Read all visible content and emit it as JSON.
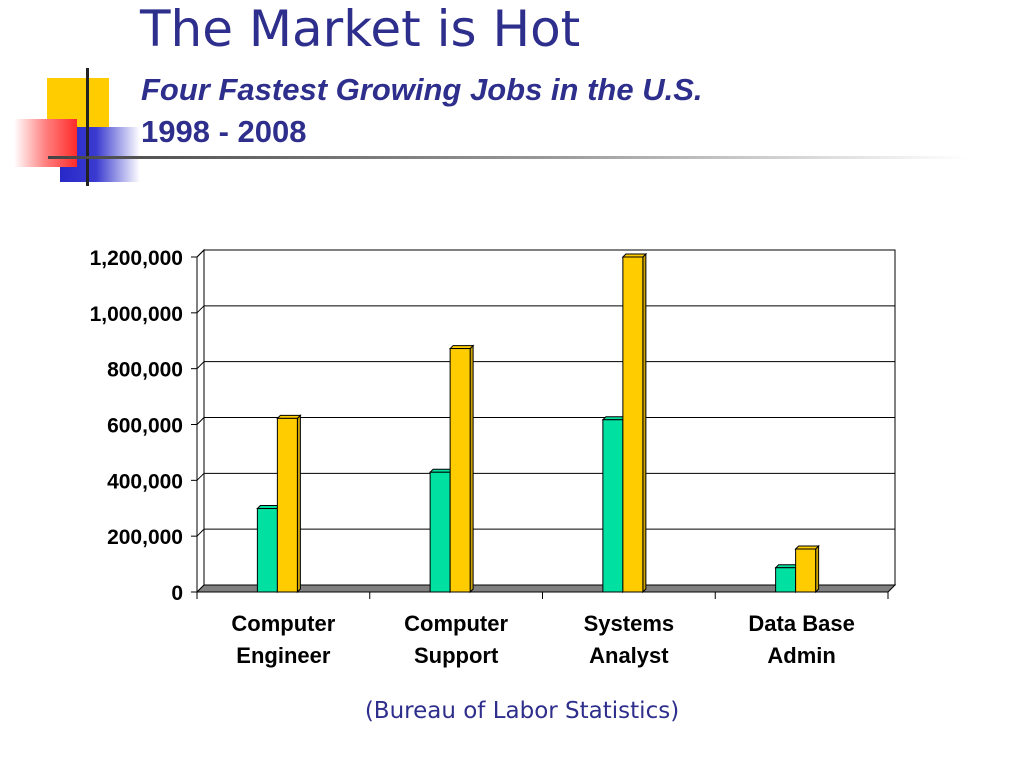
{
  "slide": {
    "title": "The Market is Hot",
    "subtitle": "Four Fastest Growing Jobs in the U.S.",
    "subtitle_years": "1998 - 2008",
    "source": "(Bureau of Labor Statistics)"
  },
  "colors": {
    "title": "#2e2e8c",
    "series_1998": "#00e0a0",
    "series_2008": "#ffcc00",
    "floor": "#808080",
    "deco_yellow": "#ffcc00",
    "deco_blue": "#3333cc",
    "deco_red": "#ff3333"
  },
  "chart_data": {
    "type": "bar",
    "title": "",
    "xlabel": "",
    "ylabel": "",
    "categories": [
      [
        "Computer",
        "Engineer"
      ],
      [
        "Computer",
        "Support"
      ],
      [
        "Systems",
        "Analyst"
      ],
      [
        "Data Base",
        "Admin"
      ]
    ],
    "series": [
      {
        "values": [
          299000,
          429000,
          617000,
          87000
        ]
      },
      {
        "values": [
          622000,
          872000,
          1200000,
          154000
        ]
      }
    ],
    "ylim": [
      0,
      1200000
    ],
    "yticks": [
      {
        "value": 0,
        "label": "0"
      },
      {
        "value": 200000,
        "label": "200,000"
      },
      {
        "value": 400000,
        "label": "400,000"
      },
      {
        "value": 600000,
        "label": "600,000"
      },
      {
        "value": 800000,
        "label": "800,000"
      },
      {
        "value": 1000000,
        "label": "1,000,000"
      },
      {
        "value": 1200000,
        "label": "1,200,000"
      }
    ],
    "grid": true,
    "legend": "none",
    "style": "3d-column"
  }
}
